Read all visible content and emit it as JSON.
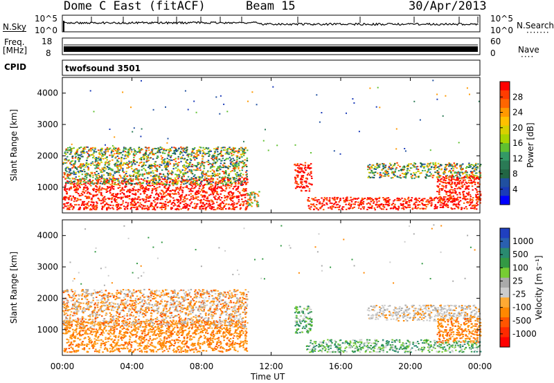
{
  "header": {
    "title": "Dome C East (fitACF)",
    "beam": "Beam 15",
    "date": "30/Apr/2013"
  },
  "panels": {
    "nsky": {
      "label": "N.Sky",
      "ytick_top": "10^5",
      "ytick_bottom": "10^0",
      "right_label": "N.Search",
      "right_tick_top": "10^5",
      "right_tick_bottom": "10^0"
    },
    "freq": {
      "label_line1": "Freq.",
      "label_line2": "[MHz]",
      "ytick_top": "18",
      "ytick_bottom": "8",
      "right_label": "Nave",
      "right_tick_top": "60",
      "right_tick_bottom": "0"
    },
    "cpid": {
      "label": "CPID",
      "value": "twofsound 3501"
    }
  },
  "chart_data": [
    {
      "type": "heatmap",
      "name": "power",
      "xlabel": "Time UT",
      "ylabel": "Slant Range [km]",
      "x_ticks": [
        "00:00",
        "04:00",
        "08:00",
        "12:00",
        "16:00",
        "20:00",
        "00:00"
      ],
      "y_ticks": [
        "1000",
        "2000",
        "3000",
        "4000"
      ],
      "ylim": [
        180,
        4500
      ],
      "xlim_hours": [
        0,
        24
      ],
      "colorbar_label": "Power [dB]",
      "colorbar_ticks": [
        "28",
        "24",
        "20",
        "16",
        "12",
        "8",
        "4"
      ],
      "colorbar_colors": [
        "#ff0000",
        "#ff3c00",
        "#ff6600",
        "#ff9900",
        "#ffc000",
        "#d8d000",
        "#a8d400",
        "#60c030",
        "#339966",
        "#2a7a55",
        "#226644",
        "#2050a0",
        "#1a3ab8",
        "#0000ff"
      ],
      "regions": [
        {
          "t0": 0.0,
          "t1": 10.6,
          "r0": 300,
          "r1": 1300,
          "level": "high"
        },
        {
          "t0": 0.0,
          "t1": 10.6,
          "r0": 1100,
          "r1": 2300,
          "level": "mixed"
        },
        {
          "t0": 10.6,
          "t1": 11.3,
          "r0": 400,
          "r1": 900,
          "level": "mid"
        },
        {
          "t0": 13.3,
          "t1": 14.3,
          "r0": 900,
          "r1": 1800,
          "level": "high"
        },
        {
          "t0": 14.0,
          "t1": 24.0,
          "r0": 300,
          "r1": 700,
          "level": "high"
        },
        {
          "t0": 17.5,
          "t1": 24.0,
          "r0": 1300,
          "r1": 1800,
          "level": "mixed"
        },
        {
          "t0": 21.5,
          "t1": 24.0,
          "r0": 600,
          "r1": 1400,
          "level": "high"
        }
      ]
    },
    {
      "type": "heatmap",
      "name": "velocity",
      "xlabel": "Time UT",
      "ylabel": "Slant Range [km]",
      "x_ticks": [
        "00:00",
        "04:00",
        "08:00",
        "12:00",
        "16:00",
        "20:00",
        "00:00"
      ],
      "y_ticks": [
        "1000",
        "2000",
        "3000",
        "4000"
      ],
      "ylim": [
        180,
        4500
      ],
      "xlim_hours": [
        0,
        24
      ],
      "colorbar_label": "Velocity [m s⁻¹]",
      "colorbar_ticks": [
        "1000",
        "500",
        "100",
        "25",
        "-25",
        "-100",
        "-500",
        "-1000"
      ],
      "colorbar_colors": [
        "#2040c0",
        "#2a60b0",
        "#2a8a70",
        "#339944",
        "#77cc33",
        "#aaaaaa",
        "#cccccc",
        "#ffaa33",
        "#ff8800",
        "#ff5500",
        "#ff2a00",
        "#ff0000"
      ],
      "regions": [
        {
          "t0": 0.0,
          "t1": 10.6,
          "r0": 300,
          "r1": 1300,
          "level": "neg-mid"
        },
        {
          "t0": 0.0,
          "t1": 10.6,
          "r0": 1100,
          "r1": 2300,
          "level": "mixed"
        },
        {
          "t0": 13.3,
          "t1": 14.3,
          "r0": 900,
          "r1": 1800,
          "level": "pos-low"
        },
        {
          "t0": 14.0,
          "t1": 24.0,
          "r0": 300,
          "r1": 700,
          "level": "pos-low"
        },
        {
          "t0": 17.5,
          "t1": 24.0,
          "r0": 1300,
          "r1": 1800,
          "level": "neutral"
        },
        {
          "t0": 21.5,
          "t1": 24.0,
          "r0": 600,
          "r1": 1400,
          "level": "neg-mid"
        }
      ]
    }
  ]
}
